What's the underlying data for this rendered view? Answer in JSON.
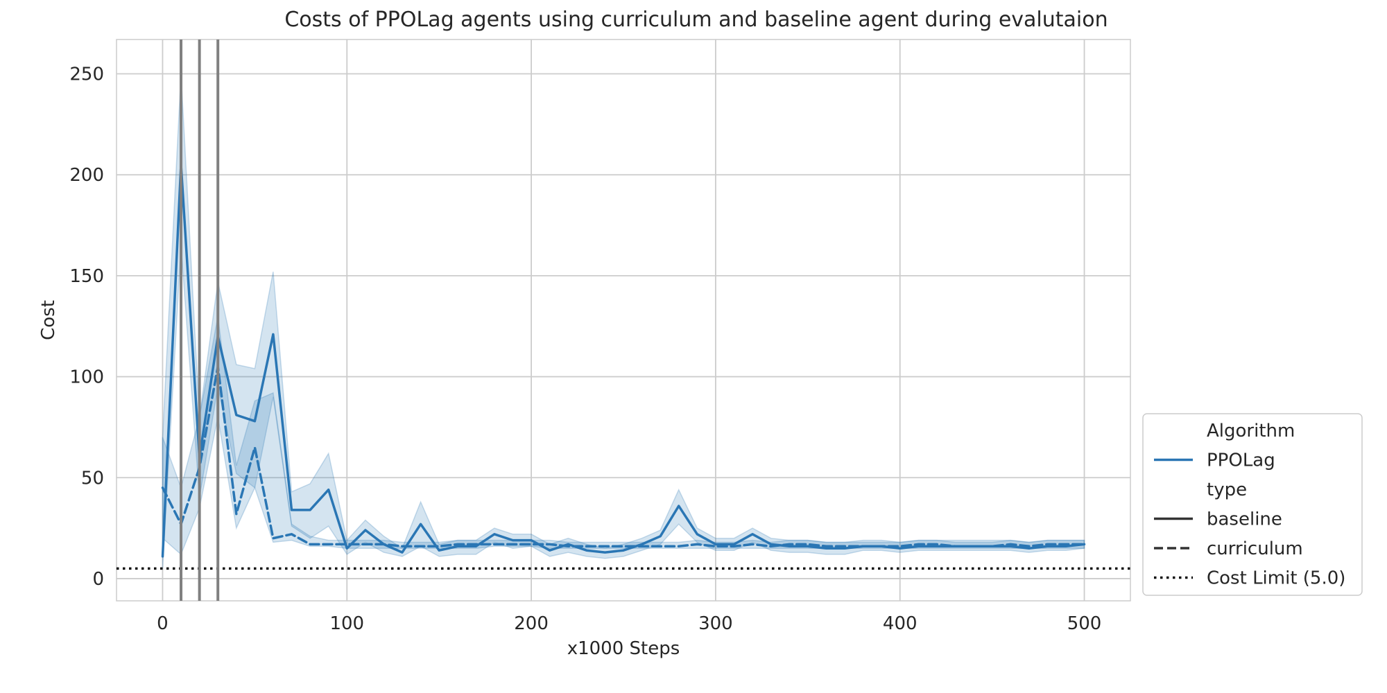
{
  "chart_data": {
    "type": "line",
    "title": "Costs of PPOLag agents using curriculum and baseline agent during evalutaion",
    "xlabel": "x1000 Steps",
    "ylabel": "Cost",
    "xlim": [
      -25,
      525
    ],
    "ylim": [
      -11,
      267
    ],
    "xticks": [
      0,
      100,
      200,
      300,
      400,
      500
    ],
    "yticks": [
      0,
      50,
      100,
      150,
      200,
      250
    ],
    "grid": true,
    "x": [
      0,
      10,
      20,
      30,
      40,
      50,
      60,
      70,
      80,
      90,
      100,
      110,
      120,
      130,
      140,
      150,
      160,
      170,
      180,
      190,
      200,
      210,
      220,
      230,
      240,
      250,
      260,
      270,
      280,
      290,
      300,
      310,
      320,
      330,
      340,
      350,
      360,
      370,
      380,
      390,
      400,
      410,
      420,
      430,
      440,
      450,
      460,
      470,
      480,
      490,
      500
    ],
    "series": [
      {
        "name": "baseline",
        "algorithm": "PPOLag",
        "dash": "solid",
        "values": [
          11,
          205,
          60,
          120,
          81,
          78,
          121,
          34,
          34,
          44,
          15,
          24,
          17,
          13,
          27,
          14,
          16,
          16,
          22,
          19,
          19,
          14,
          17,
          14,
          13,
          14,
          17,
          21,
          36,
          22,
          17,
          17,
          22,
          17,
          16,
          16,
          15,
          15,
          16,
          16,
          15,
          16,
          16,
          16,
          16,
          16,
          16,
          15,
          16,
          16,
          17
        ],
        "ci_lower": [
          5,
          165,
          40,
          95,
          52,
          45,
          90,
          26,
          20,
          26,
          12,
          18,
          13,
          11,
          16,
          11,
          12,
          12,
          18,
          15,
          16,
          11,
          13,
          11,
          10,
          11,
          14,
          17,
          27,
          18,
          14,
          14,
          18,
          14,
          13,
          13,
          12,
          12,
          14,
          14,
          13,
          14,
          14,
          14,
          14,
          14,
          14,
          13,
          14,
          14,
          15
        ],
        "ci_upper": [
          70,
          250,
          80,
          147,
          106,
          104,
          152,
          43,
          47,
          62,
          19,
          29,
          21,
          15,
          38,
          17,
          19,
          19,
          25,
          22,
          22,
          17,
          20,
          17,
          15,
          17,
          20,
          24,
          44,
          25,
          20,
          20,
          25,
          20,
          19,
          19,
          18,
          18,
          19,
          19,
          18,
          19,
          19,
          19,
          19,
          19,
          19,
          18,
          19,
          19,
          19
        ]
      },
      {
        "name": "curriculum",
        "algorithm": "PPOLag",
        "dash": "dashed",
        "values": [
          45,
          27,
          55,
          105,
          32,
          65,
          20,
          22,
          17,
          17,
          17,
          17,
          17,
          16,
          16,
          16,
          17,
          17,
          17,
          17,
          17,
          17,
          16,
          16,
          16,
          16,
          16,
          16,
          16,
          17,
          16,
          16,
          17,
          16,
          17,
          17,
          16,
          16,
          16,
          16,
          16,
          17,
          17,
          16,
          16,
          16,
          17,
          16,
          17,
          17,
          17
        ],
        "ci_lower": [
          20,
          12,
          35,
          80,
          25,
          45,
          18,
          19,
          16,
          16,
          15,
          15,
          15,
          15,
          15,
          15,
          15,
          15,
          16,
          16,
          16,
          15,
          15,
          15,
          15,
          15,
          15,
          15,
          15,
          15,
          15,
          15,
          15,
          15,
          15,
          15,
          15,
          15,
          15,
          15,
          15,
          15,
          15,
          15,
          15,
          15,
          15,
          15,
          15,
          15,
          15
        ],
        "ci_upper": [
          70,
          45,
          80,
          130,
          56,
          88,
          92,
          27,
          21,
          19,
          19,
          19,
          19,
          18,
          18,
          18,
          19,
          19,
          19,
          19,
          19,
          19,
          18,
          18,
          18,
          18,
          18,
          18,
          18,
          19,
          18,
          18,
          19,
          18,
          19,
          19,
          18,
          18,
          18,
          18,
          18,
          19,
          19,
          18,
          18,
          18,
          19,
          18,
          19,
          19,
          19
        ]
      }
    ],
    "cost_limit": {
      "label": "Cost Limit (5.0)",
      "value": 5.0
    },
    "vertical_lines": [
      10,
      20,
      30
    ],
    "legend": {
      "placement": "lower-right, outside plot",
      "entries": [
        {
          "kind": "header",
          "label": "Algorithm"
        },
        {
          "kind": "color",
          "label": "PPOLag"
        },
        {
          "kind": "header",
          "label": "type"
        },
        {
          "kind": "solid",
          "label": "baseline"
        },
        {
          "kind": "dashed",
          "label": "curriculum"
        },
        {
          "kind": "dotted",
          "label": "Cost Limit (5.0)"
        }
      ]
    },
    "colors": {
      "line": "#2a76b4",
      "band": "#2a76b4",
      "grid": "#cccccc",
      "vline": "#808080",
      "limit": "#111111",
      "text": "#262626"
    }
  }
}
